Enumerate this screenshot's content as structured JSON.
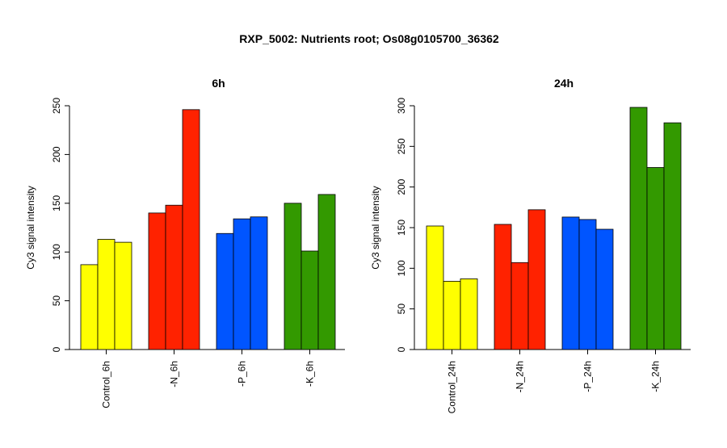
{
  "figure_title": "RXP_5002: Nutrients root; Os08g0105700_36362",
  "chart_data": [
    {
      "type": "bar",
      "title": "6h",
      "ylabel": "Cy3 signal intensity",
      "xlabel": "",
      "ylim": [
        0,
        250
      ],
      "yticks": [
        0,
        50,
        100,
        150,
        200,
        250
      ],
      "groups": [
        {
          "label": "Control_6h",
          "color": "#ffff00",
          "values": [
            87,
            113,
            110
          ]
        },
        {
          "label": "-N_6h",
          "color": "#ff2200",
          "values": [
            140,
            148,
            246
          ]
        },
        {
          "label": "-P_6h",
          "color": "#0055ff",
          "values": [
            119,
            134,
            136
          ]
        },
        {
          "label": "-K_6h",
          "color": "#339900",
          "values": [
            150,
            101,
            159
          ]
        }
      ]
    },
    {
      "type": "bar",
      "title": "24h",
      "ylabel": "Cy3 signal intensity",
      "xlabel": "",
      "ylim": [
        0,
        300
      ],
      "yticks": [
        0,
        50,
        100,
        150,
        200,
        250,
        300
      ],
      "groups": [
        {
          "label": "Control_24h",
          "color": "#ffff00",
          "values": [
            152,
            84,
            87
          ]
        },
        {
          "label": "-N_24h",
          "color": "#ff2200",
          "values": [
            154,
            107,
            172
          ]
        },
        {
          "label": "-P_24h",
          "color": "#0055ff",
          "values": [
            163,
            160,
            148
          ]
        },
        {
          "label": "-K_24h",
          "color": "#339900",
          "values": [
            298,
            224,
            279
          ]
        }
      ]
    }
  ]
}
